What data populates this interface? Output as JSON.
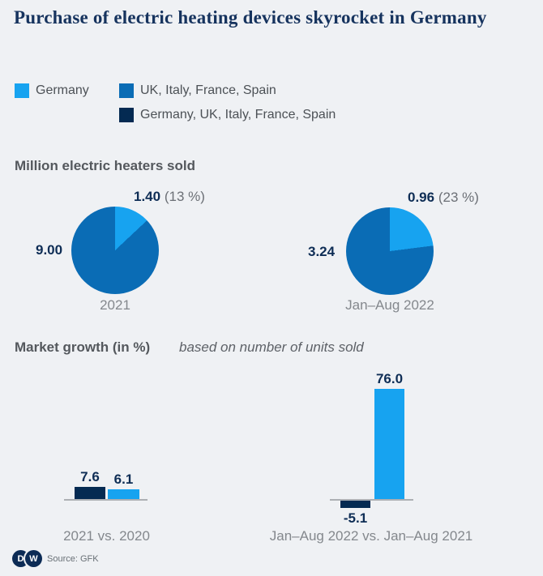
{
  "title": "Purchase of electric heating devices skyrocket in Germany",
  "palette": {
    "germany_blue": "#17a3f0",
    "four_country_blue": "#0a6cb5",
    "five_country_navy": "#042a52",
    "background": "#eff1f4",
    "axis_gray": "#adb0b4"
  },
  "legend": {
    "items": [
      {
        "label": "Germany",
        "color": "#17a3f0"
      },
      {
        "label": "UK, Italy, France, Spain",
        "color": "#0a6cb5"
      },
      {
        "label": "Germany, UK, Italy, France, Spain",
        "color": "#042a52"
      }
    ]
  },
  "pie_section": {
    "heading": "Million electric heaters sold"
  },
  "bar_section": {
    "heading": "Market growth (in %)",
    "note": "based on number of units sold"
  },
  "chart_data": [
    {
      "type": "pie",
      "category": "2021",
      "slices": [
        {
          "label": "Germany",
          "value": 1.4,
          "percent": 13,
          "color": "#17a3f0"
        },
        {
          "label": "UK, Italy, France, Spain",
          "value": 9.0,
          "percent": 87,
          "color": "#0a6cb5"
        }
      ],
      "callout_value": "1.40",
      "callout_percent": "(13 %)",
      "left_value": "9.00"
    },
    {
      "type": "pie",
      "category": "Jan–Aug 2022",
      "slices": [
        {
          "label": "Germany",
          "value": 0.96,
          "percent": 23,
          "color": "#17a3f0"
        },
        {
          "label": "UK, Italy, France, Spain",
          "value": 3.24,
          "percent": 77,
          "color": "#0a6cb5"
        }
      ],
      "callout_value": "0.96",
      "callout_percent": "(23 %)",
      "left_value": "3.24"
    },
    {
      "type": "bar",
      "category": "2021 vs. 2020",
      "unit": "%",
      "bars": [
        {
          "label": "Germany, UK, Italy, France, Spain",
          "value": 7.6,
          "display": "7.6",
          "color": "#042a52"
        },
        {
          "label": "Germany",
          "value": 6.1,
          "display": "6.1",
          "color": "#17a3f0"
        }
      ]
    },
    {
      "type": "bar",
      "category": "Jan–Aug 2022 vs. Jan–Aug 2021",
      "unit": "%",
      "bars": [
        {
          "label": "Germany, UK, Italy, France, Spain",
          "value": -5.1,
          "display": "-5.1",
          "color": "#042a52"
        },
        {
          "label": "Germany",
          "value": 76.0,
          "display": "76.0",
          "color": "#17a3f0"
        }
      ]
    }
  ],
  "footer": {
    "logo_letters": {
      "d": "D",
      "w": "W"
    },
    "source": "Source: GFK"
  }
}
